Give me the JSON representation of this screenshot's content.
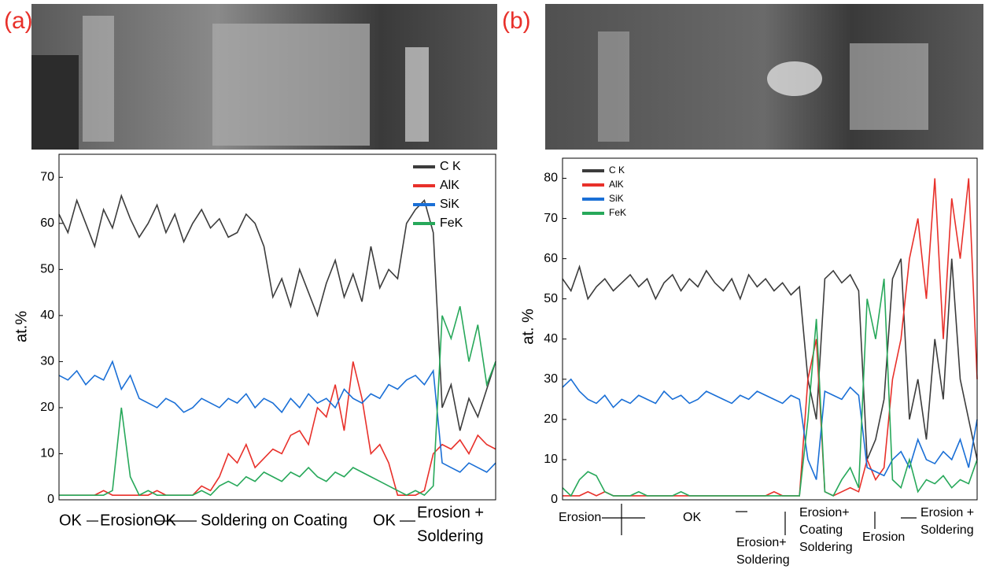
{
  "chart_data": [
    {
      "type": "line",
      "panel_label": "(a)",
      "ylabel": "at.%",
      "ylim": [
        0,
        75
      ],
      "yticks": [
        0,
        10,
        20,
        30,
        40,
        50,
        60,
        70
      ],
      "legend": "upper right",
      "series": [
        {
          "name": "C K",
          "color": "#3c3c3c",
          "values": [
            62,
            58,
            65,
            60,
            55,
            63,
            59,
            66,
            61,
            57,
            60,
            64,
            58,
            62,
            56,
            60,
            63,
            59,
            61,
            57,
            58,
            62,
            60,
            55,
            44,
            48,
            42,
            50,
            45,
            40,
            47,
            52,
            44,
            49,
            43,
            55,
            46,
            50,
            48,
            60,
            63,
            65,
            58,
            20,
            25,
            15,
            22,
            18,
            24,
            30
          ]
        },
        {
          "name": "AlK",
          "color": "#e8302a",
          "values": [
            1,
            1,
            1,
            1,
            1,
            2,
            1,
            1,
            1,
            1,
            1,
            2,
            1,
            1,
            1,
            1,
            3,
            2,
            5,
            10,
            8,
            12,
            7,
            9,
            11,
            10,
            14,
            15,
            12,
            20,
            18,
            25,
            15,
            30,
            22,
            10,
            12,
            8,
            1,
            1,
            1,
            2,
            10,
            12,
            11,
            13,
            10,
            14,
            12,
            11
          ]
        },
        {
          "name": "SiK",
          "color": "#1a6fd6",
          "values": [
            27,
            26,
            28,
            25,
            27,
            26,
            30,
            24,
            27,
            22,
            21,
            20,
            22,
            21,
            19,
            20,
            22,
            21,
            20,
            22,
            21,
            23,
            20,
            22,
            21,
            19,
            22,
            20,
            23,
            21,
            22,
            20,
            24,
            22,
            21,
            23,
            22,
            25,
            24,
            26,
            27,
            25,
            28,
            8,
            7,
            6,
            8,
            7,
            6,
            8
          ]
        },
        {
          "name": "FeK",
          "color": "#27a85a",
          "values": [
            1,
            1,
            1,
            1,
            1,
            1,
            2,
            20,
            5,
            1,
            2,
            1,
            1,
            1,
            1,
            1,
            2,
            1,
            3,
            4,
            3,
            5,
            4,
            6,
            5,
            4,
            6,
            5,
            7,
            5,
            4,
            6,
            5,
            7,
            6,
            5,
            4,
            3,
            2,
            1,
            2,
            1,
            3,
            40,
            35,
            42,
            30,
            38,
            25,
            30
          ]
        }
      ],
      "annotations": [
        [
          "OK"
        ],
        [
          "Erosion"
        ],
        [
          "OK"
        ],
        [
          "Soldering on Coating"
        ],
        [
          "OK"
        ],
        [
          "Erosion +",
          "Soldering"
        ]
      ]
    },
    {
      "type": "line",
      "panel_label": "(b)",
      "ylabel": "at. %",
      "ylim": [
        0,
        85
      ],
      "yticks": [
        0,
        10,
        20,
        30,
        40,
        50,
        60,
        70,
        80
      ],
      "legend": "upper left",
      "series": [
        {
          "name": "C K",
          "color": "#3c3c3c",
          "values": [
            55,
            52,
            58,
            50,
            53,
            55,
            52,
            54,
            56,
            53,
            55,
            50,
            54,
            56,
            52,
            55,
            53,
            57,
            54,
            52,
            55,
            50,
            56,
            53,
            55,
            52,
            54,
            51,
            53,
            30,
            20,
            55,
            57,
            54,
            56,
            52,
            10,
            15,
            25,
            55,
            60,
            20,
            30,
            15,
            40,
            25,
            60,
            30,
            20,
            10
          ]
        },
        {
          "name": "AlK",
          "color": "#e8302a",
          "values": [
            1,
            1,
            1,
            2,
            1,
            2,
            1,
            1,
            1,
            1,
            1,
            1,
            1,
            1,
            1,
            1,
            1,
            1,
            1,
            1,
            1,
            1,
            1,
            1,
            1,
            2,
            1,
            1,
            1,
            30,
            40,
            2,
            1,
            2,
            3,
            2,
            10,
            5,
            8,
            30,
            40,
            60,
            70,
            50,
            80,
            40,
            75,
            60,
            80,
            30
          ]
        },
        {
          "name": "SiK",
          "color": "#1a6fd6",
          "values": [
            28,
            30,
            27,
            25,
            24,
            26,
            23,
            25,
            24,
            26,
            25,
            24,
            27,
            25,
            26,
            24,
            25,
            27,
            26,
            25,
            24,
            26,
            25,
            27,
            26,
            25,
            24,
            26,
            25,
            10,
            5,
            27,
            26,
            25,
            28,
            26,
            8,
            7,
            6,
            10,
            12,
            8,
            15,
            10,
            9,
            12,
            10,
            15,
            8,
            20
          ]
        },
        {
          "name": "FeK",
          "color": "#27a85a",
          "values": [
            3,
            1,
            5,
            7,
            6,
            2,
            1,
            1,
            1,
            2,
            1,
            1,
            1,
            1,
            2,
            1,
            1,
            1,
            1,
            1,
            1,
            1,
            1,
            1,
            1,
            1,
            1,
            1,
            1,
            20,
            45,
            2,
            1,
            5,
            8,
            3,
            50,
            40,
            55,
            5,
            3,
            10,
            2,
            5,
            4,
            6,
            3,
            5,
            4,
            10
          ]
        }
      ],
      "annotations": [
        [
          "Erosion"
        ],
        [
          "OK"
        ],
        [
          "Erosion+",
          "Soldering"
        ],
        [
          "Erosion+",
          "Coating",
          "Soldering"
        ],
        [
          "Erosion"
        ],
        [
          "Erosion +",
          "Soldering"
        ]
      ]
    }
  ]
}
